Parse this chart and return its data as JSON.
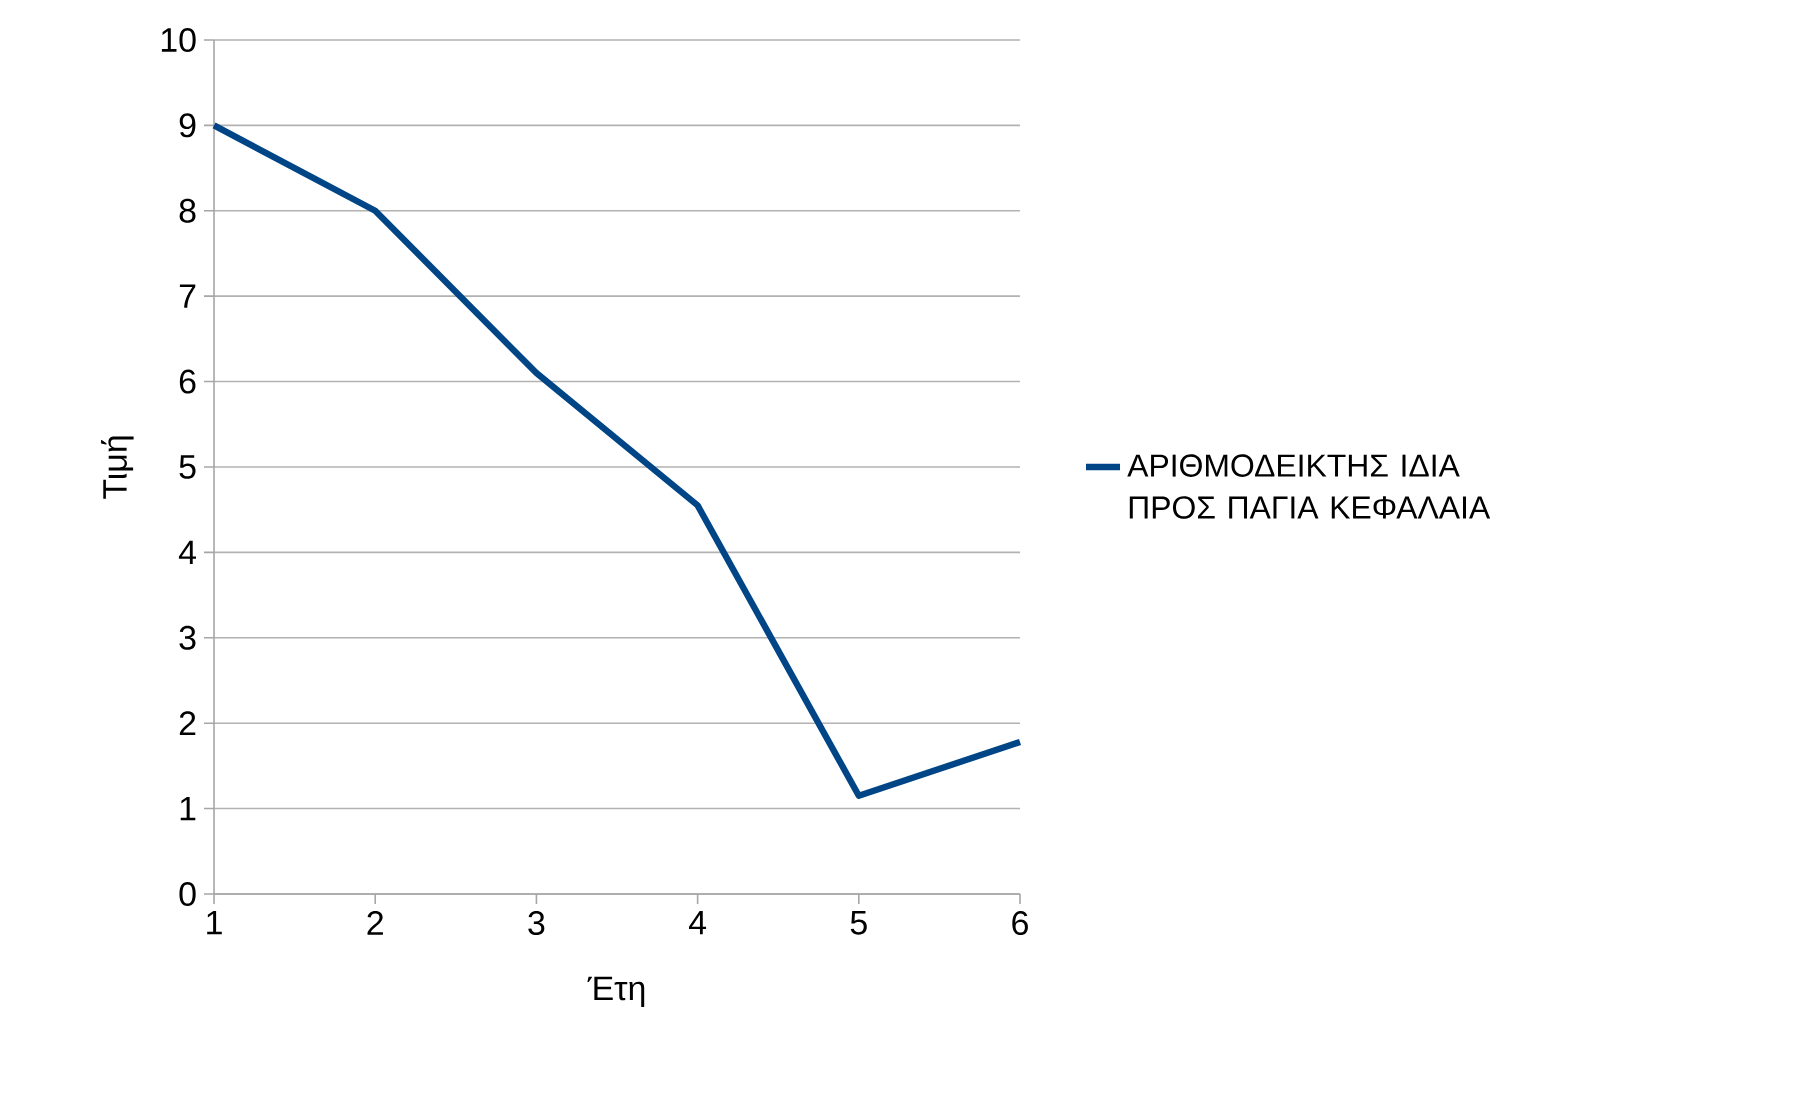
{
  "chart_data": {
    "type": "line",
    "xlabel": "Έτη",
    "ylabel": "Τιμή",
    "x": [
      1,
      2,
      3,
      4,
      5,
      6
    ],
    "series": [
      {
        "name": "ΑΡΙΘΜΟΔΕΙΚΤΗΣ ΙΔΙΑ ΠΡΟΣ ΠΑΓΙΑ ΚΕΦΑΛΑΙΑ",
        "color": "#004586",
        "values": [
          9,
          8,
          6.1,
          4.55,
          1.15,
          1.78
        ]
      }
    ],
    "xlim": [
      1,
      6
    ],
    "ylim": [
      0,
      10
    ],
    "xticks": [
      1,
      2,
      3,
      4,
      5,
      6
    ],
    "yticks": [
      0,
      1,
      2,
      3,
      4,
      5,
      6,
      7,
      8,
      9,
      10
    ],
    "grid": "y",
    "legend": "right",
    "marker": "none",
    "line_style": "solid"
  }
}
